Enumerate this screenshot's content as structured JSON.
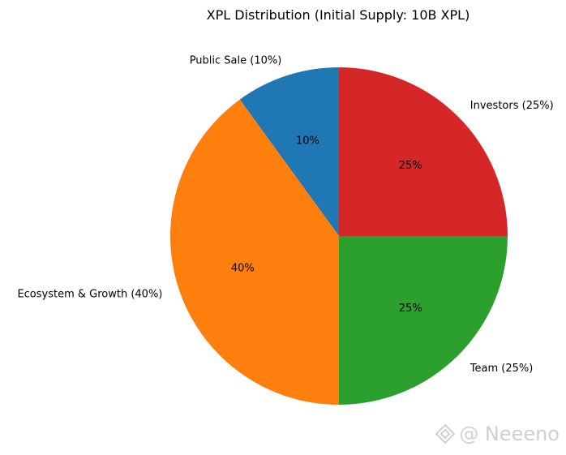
{
  "chart_data": {
    "type": "pie",
    "title": "XPL Distribution (Initial Supply: 10B XPL)",
    "slices": [
      {
        "label": "Public Sale (10%)",
        "value": 10,
        "pct_label": "10%",
        "color": "#1f77b4"
      },
      {
        "label": "Ecosystem & Growth (40%)",
        "value": 40,
        "pct_label": "40%",
        "color": "#ff7f0e"
      },
      {
        "label": "Team (25%)",
        "value": 25,
        "pct_label": "25%",
        "color": "#2ca02c"
      },
      {
        "label": "Investors (25%)",
        "value": 25,
        "pct_label": "25%",
        "color": "#d62728"
      }
    ],
    "start_angle_deg": 90,
    "direction": "counterclockwise"
  },
  "watermark": {
    "text": "@ Neeeno",
    "icon": "diamond-logo-icon"
  }
}
